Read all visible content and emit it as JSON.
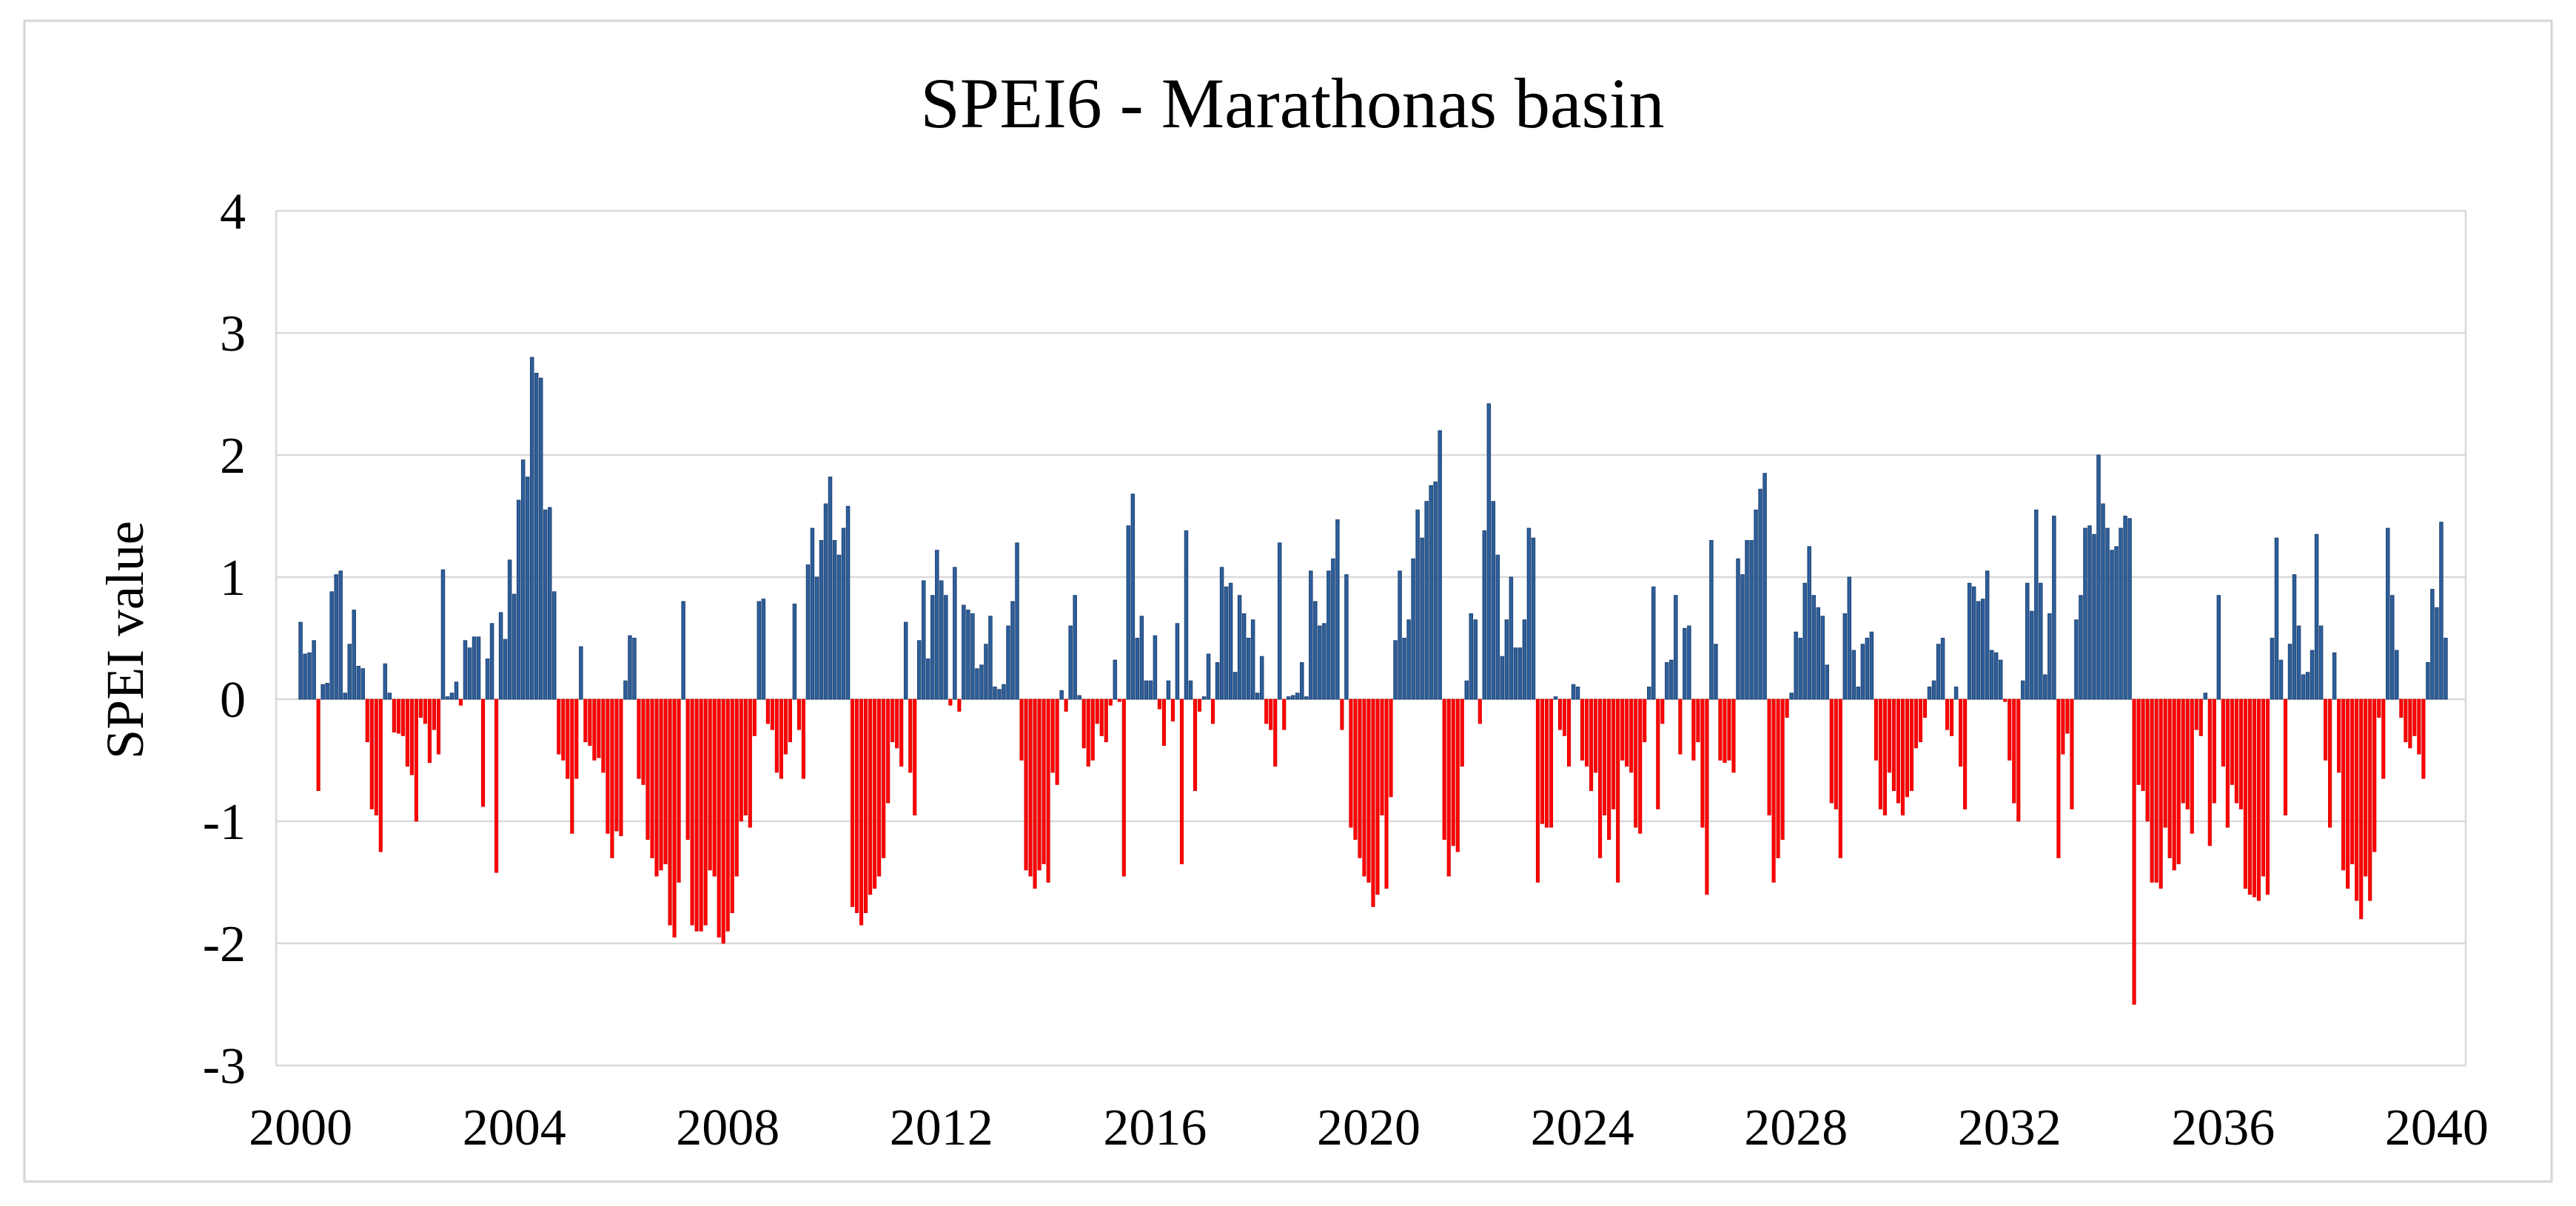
{
  "chart_data": {
    "type": "bar",
    "title": "SPEI6 - Marathonas basin",
    "xlabel": "",
    "ylabel": "SPEI value",
    "ylim": [
      -3,
      4
    ],
    "ytick_step": 1,
    "yticks": [
      4,
      3,
      2,
      1,
      0,
      -1,
      -2,
      -3
    ],
    "xtick_years": [
      2000,
      2004,
      2008,
      2012,
      2016,
      2020,
      2024,
      2028,
      2032,
      2036,
      2040
    ],
    "grid": "horizontal",
    "legend": "none",
    "positive_color": "#2E5F9B",
    "positive_border_color": "#1F4474",
    "negative_color": "#FF0000",
    "negative_border_color": "#CC0000",
    "gridline_color": "#D9D9D9",
    "frame_color": "#D6D6D6",
    "x_start": "2000-01",
    "x_end": "2040-12",
    "series_monthly": [
      {
        "year": 2000,
        "values": [
          null,
          null,
          null,
          null,
          null,
          0.63,
          0.37,
          0.38,
          0.48,
          -0.75,
          0.12,
          0.13
        ]
      },
      {
        "year": 2001,
        "values": [
          0.88,
          1.02,
          1.05,
          0.05,
          0.45,
          0.73,
          0.27,
          0.25,
          -0.35,
          -0.9,
          -0.95,
          -1.25
        ]
      },
      {
        "year": 2002,
        "values": [
          0.29,
          0.05,
          -0.27,
          -0.28,
          -0.3,
          -0.55,
          -0.62,
          -1.0,
          -0.15,
          -0.2,
          -0.52,
          -0.25
        ]
      },
      {
        "year": 2003,
        "values": [
          -0.45,
          1.06,
          0.02,
          0.05,
          0.14,
          -0.05,
          0.48,
          0.42,
          0.51,
          0.51,
          -0.88,
          0.33
        ]
      },
      {
        "year": 2004,
        "values": [
          0.62,
          -1.42,
          0.71,
          0.49,
          1.14,
          0.86,
          1.63,
          1.96,
          1.82,
          2.8,
          2.67,
          2.63
        ]
      },
      {
        "year": 2005,
        "values": [
          1.55,
          1.57,
          0.88,
          -0.45,
          -0.5,
          -0.65,
          -1.1,
          -0.65,
          0.43,
          -0.35,
          -0.38,
          -0.5
        ]
      },
      {
        "year": 2006,
        "values": [
          -0.48,
          -0.6,
          -1.1,
          -1.3,
          -1.08,
          -1.12,
          0.15,
          0.52,
          0.5,
          -0.65,
          -0.7,
          -1.15
        ]
      },
      {
        "year": 2007,
        "values": [
          -1.3,
          -1.45,
          -1.4,
          -1.35,
          -1.85,
          -1.95,
          -1.5,
          0.8,
          -1.15,
          -1.85,
          -1.9,
          -1.9
        ]
      },
      {
        "year": 2008,
        "values": [
          -1.85,
          -1.4,
          -1.45,
          -1.95,
          -2.0,
          -1.9,
          -1.75,
          -1.45,
          -1.0,
          -0.95,
          -1.05,
          -0.3
        ]
      },
      {
        "year": 2009,
        "values": [
          0.8,
          0.82,
          -0.2,
          -0.25,
          -0.6,
          -0.65,
          -0.45,
          -0.35,
          0.78,
          -0.25,
          -0.65,
          1.1
        ]
      },
      {
        "year": 2010,
        "values": [
          1.4,
          1.0,
          1.3,
          1.6,
          1.82,
          1.3,
          1.18,
          1.4,
          1.58,
          -1.7,
          -1.75,
          -1.85
        ]
      },
      {
        "year": 2011,
        "values": [
          -1.75,
          -1.6,
          -1.55,
          -1.45,
          -1.3,
          -0.85,
          -0.35,
          -0.4,
          -0.55,
          0.63,
          -0.6,
          -0.95
        ]
      },
      {
        "year": 2012,
        "values": [
          0.48,
          0.97,
          0.33,
          0.85,
          1.22,
          0.97,
          0.85,
          -0.05,
          1.08,
          -0.1,
          0.77,
          0.73
        ]
      },
      {
        "year": 2013,
        "values": [
          0.7,
          0.25,
          0.28,
          0.45,
          0.68,
          0.1,
          0.08,
          0.12,
          0.6,
          0.8,
          1.28,
          -0.5
        ]
      },
      {
        "year": 2014,
        "values": [
          -1.4,
          -1.45,
          -1.55,
          -1.4,
          -1.35,
          -1.5,
          -0.6,
          -0.7,
          0.07,
          -0.1,
          0.6,
          0.85
        ]
      },
      {
        "year": 2015,
        "values": [
          0.03,
          -0.4,
          -0.55,
          -0.5,
          -0.2,
          -0.3,
          -0.35,
          -0.05,
          0.32,
          -0.02,
          -1.45,
          1.42
        ]
      },
      {
        "year": 2016,
        "values": [
          1.68,
          0.5,
          0.68,
          0.15,
          0.15,
          0.52,
          -0.08,
          -0.38,
          0.15,
          -0.18,
          0.62,
          -1.35
        ]
      },
      {
        "year": 2017,
        "values": [
          1.38,
          0.15,
          -0.75,
          -0.1,
          0.02,
          0.37,
          -0.2,
          0.3,
          1.08,
          0.92,
          0.95,
          0.22
        ]
      },
      {
        "year": 2018,
        "values": [
          0.85,
          0.7,
          0.5,
          0.65,
          0.05,
          0.35,
          -0.2,
          -0.25,
          -0.55,
          1.28,
          -0.25,
          0.02
        ]
      },
      {
        "year": 2019,
        "values": [
          0.03,
          0.05,
          0.3,
          0.02,
          1.05,
          0.8,
          0.6,
          0.62,
          1.05,
          1.15,
          1.47,
          -0.25
        ]
      },
      {
        "year": 2020,
        "values": [
          1.02,
          -1.05,
          -1.15,
          -1.3,
          -1.45,
          -1.5,
          -1.7,
          -1.6,
          -0.95,
          -1.55,
          -0.8,
          0.48
        ]
      },
      {
        "year": 2021,
        "values": [
          1.05,
          0.5,
          0.65,
          1.15,
          1.55,
          1.32,
          1.62,
          1.75,
          1.78,
          2.2,
          -1.15,
          -1.45
        ]
      },
      {
        "year": 2022,
        "values": [
          -1.2,
          -1.25,
          -0.55,
          0.15,
          0.7,
          0.65,
          -0.2,
          1.38,
          2.42,
          1.62,
          1.18,
          0.35
        ]
      },
      {
        "year": 2023,
        "values": [
          0.65,
          1.0,
          0.42,
          0.42,
          0.65,
          1.4,
          1.32,
          -1.5,
          -1.02,
          -1.05,
          -1.05,
          0.02
        ]
      },
      {
        "year": 2024,
        "values": [
          -0.25,
          -0.3,
          -0.55,
          0.12,
          0.1,
          -0.5,
          -0.55,
          -0.75,
          -0.6,
          -1.3,
          -0.95,
          -1.15
        ]
      },
      {
        "year": 2025,
        "values": [
          -0.9,
          -1.5,
          -0.5,
          -0.55,
          -0.6,
          -1.05,
          -1.1,
          -0.35,
          0.1,
          0.92,
          -0.9,
          -0.2
        ]
      },
      {
        "year": 2026,
        "values": [
          0.3,
          0.32,
          0.85,
          -0.45,
          0.58,
          0.6,
          -0.5,
          -0.35,
          -1.05,
          -1.6,
          1.3,
          0.45
        ]
      },
      {
        "year": 2027,
        "values": [
          -0.5,
          -0.52,
          -0.5,
          -0.6,
          1.15,
          1.02,
          1.3,
          1.3,
          1.55,
          1.72,
          1.85,
          -0.95
        ]
      },
      {
        "year": 2028,
        "values": [
          -1.5,
          -1.3,
          -1.15,
          -0.15,
          0.05,
          0.55,
          0.5,
          0.95,
          1.25,
          0.85,
          0.75,
          0.68
        ]
      },
      {
        "year": 2029,
        "values": [
          0.28,
          -0.85,
          -0.9,
          -1.3,
          0.7,
          1.0,
          0.4,
          0.1,
          0.45,
          0.5,
          0.55,
          -0.5
        ]
      },
      {
        "year": 2030,
        "values": [
          -0.9,
          -0.95,
          -0.6,
          -0.75,
          -0.85,
          -0.95,
          -0.8,
          -0.75,
          -0.4,
          -0.35,
          -0.15,
          0.1
        ]
      },
      {
        "year": 2031,
        "values": [
          0.15,
          0.45,
          0.5,
          -0.25,
          -0.3,
          0.1,
          -0.55,
          -0.9,
          0.95,
          0.92,
          0.8,
          0.82
        ]
      },
      {
        "year": 2032,
        "values": [
          1.05,
          0.4,
          0.38,
          0.32,
          -0.02,
          -0.5,
          -0.85,
          -1.0,
          0.15,
          0.95,
          0.72,
          1.55
        ]
      },
      {
        "year": 2033,
        "values": [
          0.95,
          0.2,
          0.7,
          1.5,
          -1.3,
          -0.45,
          -0.28,
          -0.9,
          0.65,
          0.85,
          1.4,
          1.42
        ]
      },
      {
        "year": 2034,
        "values": [
          1.35,
          2.0,
          1.6,
          1.4,
          1.22,
          1.25,
          1.4,
          1.5,
          1.48,
          -2.5,
          -0.7,
          -0.75
        ]
      },
      {
        "year": 2035,
        "values": [
          -1.0,
          -1.5,
          -1.5,
          -1.55,
          -1.05,
          -1.3,
          -1.4,
          -1.35,
          -0.85,
          -0.9,
          -1.1,
          -0.25
        ]
      },
      {
        "year": 2036,
        "values": [
          -0.3,
          0.05,
          -1.2,
          -0.85,
          0.85,
          -0.55,
          -1.05,
          -0.7,
          -0.85,
          -0.9,
          -1.55,
          -1.6
        ]
      },
      {
        "year": 2037,
        "values": [
          -1.62,
          -1.65,
          -1.45,
          -1.6,
          0.5,
          1.32,
          0.32,
          -0.95,
          0.45,
          1.02,
          0.6,
          0.2
        ]
      },
      {
        "year": 2038,
        "values": [
          0.22,
          0.4,
          1.35,
          0.6,
          -0.5,
          -1.05,
          0.38,
          -0.6,
          -1.4,
          -1.55,
          -1.35,
          -1.65
        ]
      },
      {
        "year": 2039,
        "values": [
          -1.8,
          -1.45,
          -1.65,
          -1.25,
          -0.15,
          -0.65,
          1.4,
          0.85,
          0.4,
          -0.15,
          -0.35,
          -0.4
        ]
      },
      {
        "year": 2040,
        "values": [
          -0.3,
          -0.45,
          -0.65,
          0.3,
          0.9,
          0.75,
          1.45,
          0.5,
          null,
          null,
          null,
          null
        ]
      }
    ]
  }
}
